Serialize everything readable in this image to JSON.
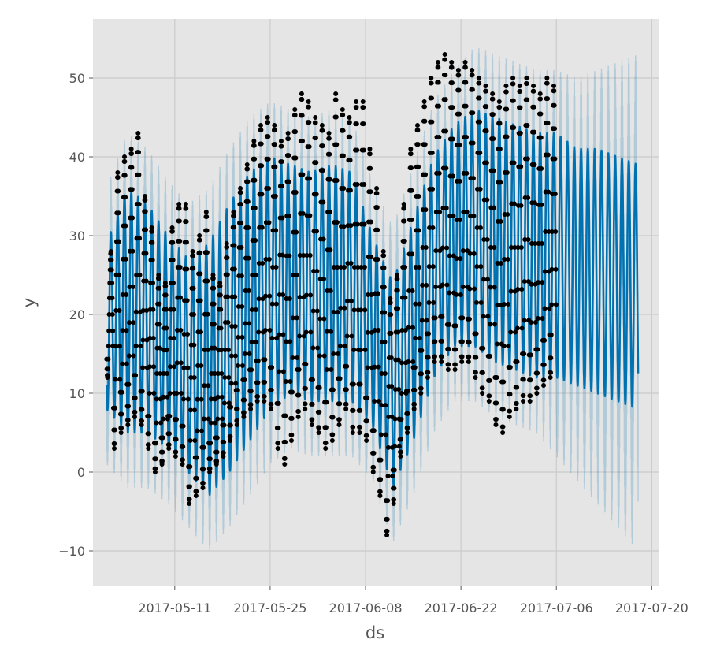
{
  "chart_data": {
    "type": "line",
    "title": "",
    "xlabel": "ds",
    "ylabel": "y",
    "grid": true,
    "legend": "none",
    "xlim": [
      "2017-04-29",
      "2017-07-21"
    ],
    "ylim": [
      -14.5,
      57.5
    ],
    "x_ticks": [
      "2017-05-11",
      "2017-05-25",
      "2017-06-08",
      "2017-06-22",
      "2017-07-06",
      "2017-07-20"
    ],
    "y_ticks": [
      -10,
      0,
      10,
      20,
      30,
      40,
      50
    ],
    "y_tick_labels": [
      "−10",
      "0",
      "10",
      "20",
      "30",
      "40",
      "50"
    ],
    "history_range": [
      "2017-05-01",
      "2017-07-05"
    ],
    "forecast_range": [
      "2017-05-01",
      "2017-07-18"
    ],
    "series": [
      {
        "role": "observed",
        "style": "points",
        "color": "#000000",
        "x": [
          "2017-05-01",
          "2017-05-02",
          "2017-05-03",
          "2017-05-04",
          "2017-05-05",
          "2017-05-06",
          "2017-05-07",
          "2017-05-08",
          "2017-05-09",
          "2017-05-10",
          "2017-05-11",
          "2017-05-12",
          "2017-05-13",
          "2017-05-14",
          "2017-05-15",
          "2017-05-16",
          "2017-05-17",
          "2017-05-18",
          "2017-05-19",
          "2017-05-20",
          "2017-05-21",
          "2017-05-22",
          "2017-05-23",
          "2017-05-24",
          "2017-05-25",
          "2017-05-26",
          "2017-05-27",
          "2017-05-28",
          "2017-05-29",
          "2017-05-30",
          "2017-05-31",
          "2017-06-01",
          "2017-06-02",
          "2017-06-03",
          "2017-06-04",
          "2017-06-05",
          "2017-06-06",
          "2017-06-07",
          "2017-06-08",
          "2017-06-09",
          "2017-06-10",
          "2017-06-11",
          "2017-06-12",
          "2017-06-13",
          "2017-06-14",
          "2017-06-15",
          "2017-06-16",
          "2017-06-17",
          "2017-06-18",
          "2017-06-19",
          "2017-06-20",
          "2017-06-21",
          "2017-06-22",
          "2017-06-23",
          "2017-06-24",
          "2017-06-25",
          "2017-06-26",
          "2017-06-27",
          "2017-06-28",
          "2017-06-29",
          "2017-06-30",
          "2017-07-01",
          "2017-07-02",
          "2017-07-03",
          "2017-07-04",
          "2017-07-05"
        ],
        "max": [
          28,
          38,
          40,
          41,
          43,
          35,
          31,
          25,
          24,
          31,
          34,
          34,
          28,
          30,
          33,
          25,
          24,
          29,
          33,
          36,
          39,
          42,
          44,
          45,
          44,
          42,
          43,
          46,
          48,
          47,
          45,
          44,
          43,
          48,
          46,
          45,
          47,
          47,
          41,
          36,
          28,
          22,
          25,
          34,
          41,
          44,
          47,
          50,
          52,
          53,
          52,
          51,
          52,
          51,
          50,
          49,
          48,
          47,
          49,
          50,
          49,
          50,
          49,
          48,
          50,
          49
        ],
        "min": [
          12,
          3,
          5,
          6,
          7,
          6,
          3,
          0,
          1,
          3,
          2,
          1,
          -4,
          -3,
          -2,
          0,
          1,
          2,
          4,
          6,
          7,
          8,
          9,
          9,
          8,
          3,
          1,
          4,
          7,
          8,
          6,
          5,
          3,
          4,
          6,
          8,
          5,
          5,
          4,
          0,
          -3,
          -8,
          -4,
          2,
          5,
          8,
          10,
          12,
          14,
          14,
          13,
          13,
          14,
          14,
          12,
          10,
          9,
          6,
          5,
          7,
          8,
          9,
          9,
          10,
          11,
          12
        ]
      },
      {
        "role": "forecast",
        "style": "line",
        "color": "#0072B2",
        "x": [
          "2017-05-01",
          "2017-05-04",
          "2017-05-07",
          "2017-05-10",
          "2017-05-13",
          "2017-05-16",
          "2017-05-19",
          "2017-05-22",
          "2017-05-25",
          "2017-05-28",
          "2017-05-31",
          "2017-06-03",
          "2017-06-06",
          "2017-06-09",
          "2017-06-12",
          "2017-06-15",
          "2017-06-18",
          "2017-06-21",
          "2017-06-24",
          "2017-06-27",
          "2017-06-30",
          "2017-07-03",
          "2017-07-06",
          "2017-07-09",
          "2017-07-12",
          "2017-07-15",
          "2017-07-18"
        ],
        "daily_peak": [
          29,
          36,
          34,
          30,
          27,
          29,
          34,
          38,
          40,
          39,
          38,
          39,
          38,
          30,
          24,
          32,
          40,
          44,
          46,
          45,
          44,
          43,
          43,
          41,
          41,
          40,
          39
        ],
        "daily_trough": [
          8,
          5,
          5,
          3,
          0,
          -3,
          0,
          4,
          8,
          10,
          9,
          9,
          9,
          6,
          -2,
          4,
          12,
          16,
          16,
          14,
          13,
          12,
          12,
          11,
          10,
          9,
          8
        ]
      },
      {
        "role": "uncertainty interval",
        "style": "band",
        "color": "#0072B2",
        "x": [
          "2017-05-01",
          "2017-05-04",
          "2017-05-07",
          "2017-05-10",
          "2017-05-13",
          "2017-05-16",
          "2017-05-19",
          "2017-05-22",
          "2017-05-25",
          "2017-05-28",
          "2017-05-31",
          "2017-06-03",
          "2017-06-06",
          "2017-06-09",
          "2017-06-12",
          "2017-06-15",
          "2017-06-18",
          "2017-06-21",
          "2017-06-24",
          "2017-06-27",
          "2017-06-30",
          "2017-07-03",
          "2017-07-06",
          "2017-07-09",
          "2017-07-12",
          "2017-07-15",
          "2017-07-18"
        ],
        "upper_peak": [
          36,
          43,
          41,
          37,
          34,
          36,
          41,
          45,
          47,
          46,
          45,
          46,
          45,
          37,
          31,
          39,
          47,
          51,
          54,
          53,
          52,
          51,
          51,
          50,
          51,
          52,
          53
        ],
        "lower_trough": [
          1,
          -2,
          -2,
          -4,
          -7,
          -10,
          -7,
          -3,
          1,
          3,
          2,
          2,
          2,
          -1,
          -9,
          -3,
          5,
          9,
          9,
          7,
          6,
          5,
          2,
          -1,
          -4,
          -7,
          -10
        ]
      }
    ]
  }
}
